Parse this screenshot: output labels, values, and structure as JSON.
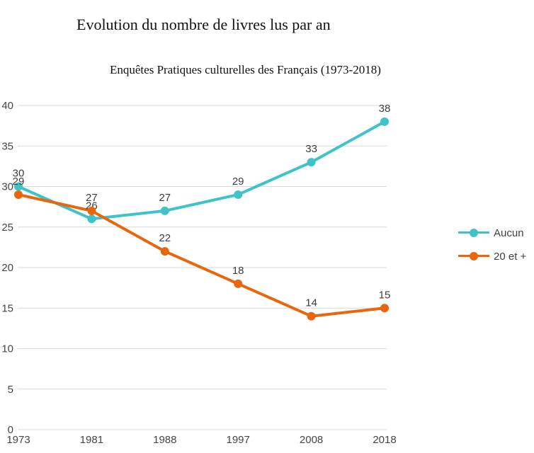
{
  "header": {
    "title": "Evolution du nombre de livres lus par an",
    "subtitle": "Enquêtes Pratiques culturelles des Français (1973-2018)"
  },
  "chart_data": {
    "type": "line",
    "categories": [
      "1973",
      "1981",
      "1988",
      "1997",
      "2008",
      "2018"
    ],
    "series": [
      {
        "name": "Aucun",
        "color": "#3dc3c8",
        "values": [
          30,
          26,
          27,
          29,
          33,
          38
        ]
      },
      {
        "name": "20 et +",
        "color": "#e8660d",
        "values": [
          29,
          27,
          22,
          18,
          14,
          15
        ]
      }
    ],
    "title": "Evolution du nombre de livres lus par an",
    "subtitle": "Enquêtes Pratiques culturelles des Français (1973-2018)",
    "xlabel": "",
    "ylabel": "",
    "ylim": [
      0,
      40
    ],
    "ytick_step": 5,
    "yticks": [
      0,
      5,
      10,
      15,
      20,
      25,
      30,
      35,
      40
    ],
    "grid": "horizontal-only",
    "grid_color": "#d9d9d9",
    "data_labels": true,
    "data_label_color": "#3d3d3d",
    "legend_position": "right",
    "marker": "circle"
  }
}
